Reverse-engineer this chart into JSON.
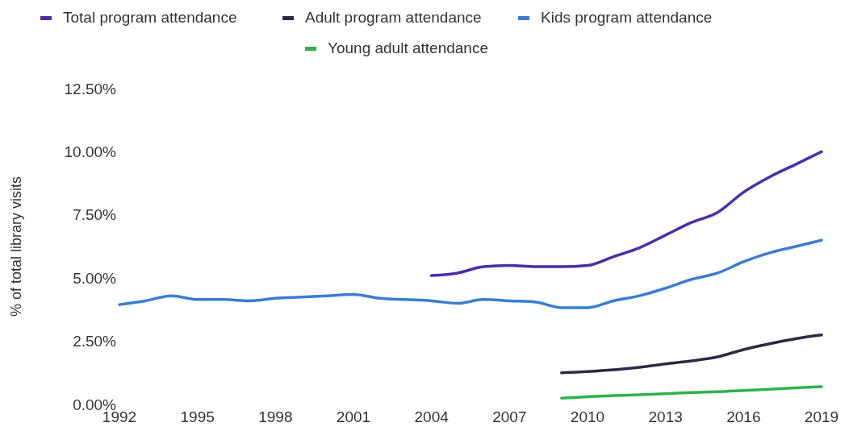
{
  "chart_data": {
    "type": "line",
    "ylabel": "% of total library visits",
    "xlim": [
      1992,
      2019
    ],
    "xticks": [
      1992,
      1995,
      1998,
      2001,
      2004,
      2007,
      2010,
      2013,
      2016,
      2019
    ],
    "ylim": [
      0,
      12.5
    ],
    "yticks": [
      {
        "value": 0,
        "label": "0.00%"
      },
      {
        "value": 2.5,
        "label": "2.50%"
      },
      {
        "value": 5,
        "label": "5.00%"
      },
      {
        "value": 7.5,
        "label": "7.50%"
      },
      {
        "value": 10,
        "label": "10.00%"
      },
      {
        "value": 12.5,
        "label": "12.50%"
      }
    ],
    "legend": "top",
    "grid": false,
    "series": [
      {
        "name": "Total program attendance",
        "color": "#4a2fa8",
        "x": [
          2004,
          2005,
          2006,
          2007,
          2008,
          2009,
          2010,
          2011,
          2012,
          2013,
          2014,
          2015,
          2016,
          2017,
          2018,
          2019
        ],
        "values": [
          5.1,
          5.2,
          5.45,
          5.5,
          5.45,
          5.45,
          5.5,
          5.85,
          6.2,
          6.7,
          7.2,
          7.6,
          8.4,
          9.0,
          9.5,
          10.0
        ]
      },
      {
        "name": "Adult program attendance",
        "color": "#2a2a44",
        "x": [
          2009,
          2010,
          2011,
          2012,
          2013,
          2014,
          2015,
          2016,
          2017,
          2018,
          2019
        ],
        "values": [
          1.25,
          1.3,
          1.37,
          1.47,
          1.6,
          1.72,
          1.88,
          2.17,
          2.4,
          2.6,
          2.75
        ]
      },
      {
        "name": "Kids program attendance",
        "color": "#3a7dd1",
        "x": [
          1992,
          1993,
          1994,
          1995,
          1996,
          1997,
          1998,
          1999,
          2000,
          2001,
          2002,
          2003,
          2004,
          2005,
          2006,
          2007,
          2008,
          2009,
          2010,
          2011,
          2012,
          2013,
          2014,
          2015,
          2016,
          2017,
          2018,
          2019
        ],
        "values": [
          3.95,
          4.1,
          4.3,
          4.15,
          4.15,
          4.1,
          4.2,
          4.25,
          4.3,
          4.35,
          4.2,
          4.15,
          4.1,
          4.0,
          4.15,
          4.1,
          4.05,
          3.83,
          3.83,
          4.1,
          4.3,
          4.6,
          4.95,
          5.2,
          5.65,
          6.0,
          6.25,
          6.5
        ]
      },
      {
        "name": "Young adult attendance",
        "color": "#2db34a",
        "x": [
          2009,
          2010,
          2011,
          2012,
          2013,
          2014,
          2015,
          2016,
          2017,
          2018,
          2019
        ],
        "values": [
          0.25,
          0.3,
          0.35,
          0.38,
          0.42,
          0.47,
          0.5,
          0.55,
          0.6,
          0.65,
          0.7
        ]
      }
    ]
  }
}
